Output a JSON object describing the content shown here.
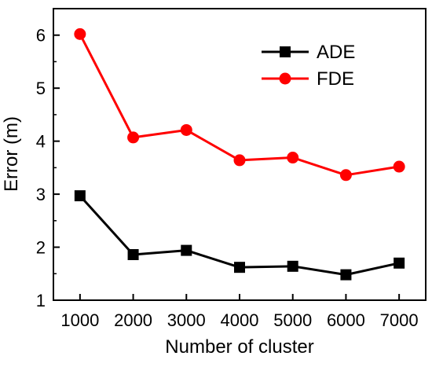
{
  "chart_data": {
    "type": "line",
    "xlabel": "Number of cluster",
    "ylabel": "Error (m)",
    "x": [
      1000,
      2000,
      3000,
      4000,
      5000,
      6000,
      7000
    ],
    "x_tick_labels": [
      "1000",
      "2000",
      "3000",
      "4000",
      "5000",
      "6000",
      "7000"
    ],
    "y_tick_labels": [
      "1",
      "2",
      "3",
      "4",
      "5",
      "6"
    ],
    "xlim": [
      500,
      7500
    ],
    "ylim": [
      1,
      6.5
    ],
    "y_ticks": [
      1,
      2,
      3,
      4,
      5,
      6
    ],
    "grid": false,
    "legend_position": "top-right",
    "series": [
      {
        "name": "ADE",
        "color": "#000000",
        "marker": "square",
        "values": [
          2.97,
          1.86,
          1.94,
          1.62,
          1.64,
          1.48,
          1.7
        ]
      },
      {
        "name": "FDE",
        "color": "#ff0000",
        "marker": "circle",
        "values": [
          6.02,
          4.07,
          4.21,
          3.64,
          3.69,
          3.36,
          3.52
        ]
      }
    ]
  }
}
